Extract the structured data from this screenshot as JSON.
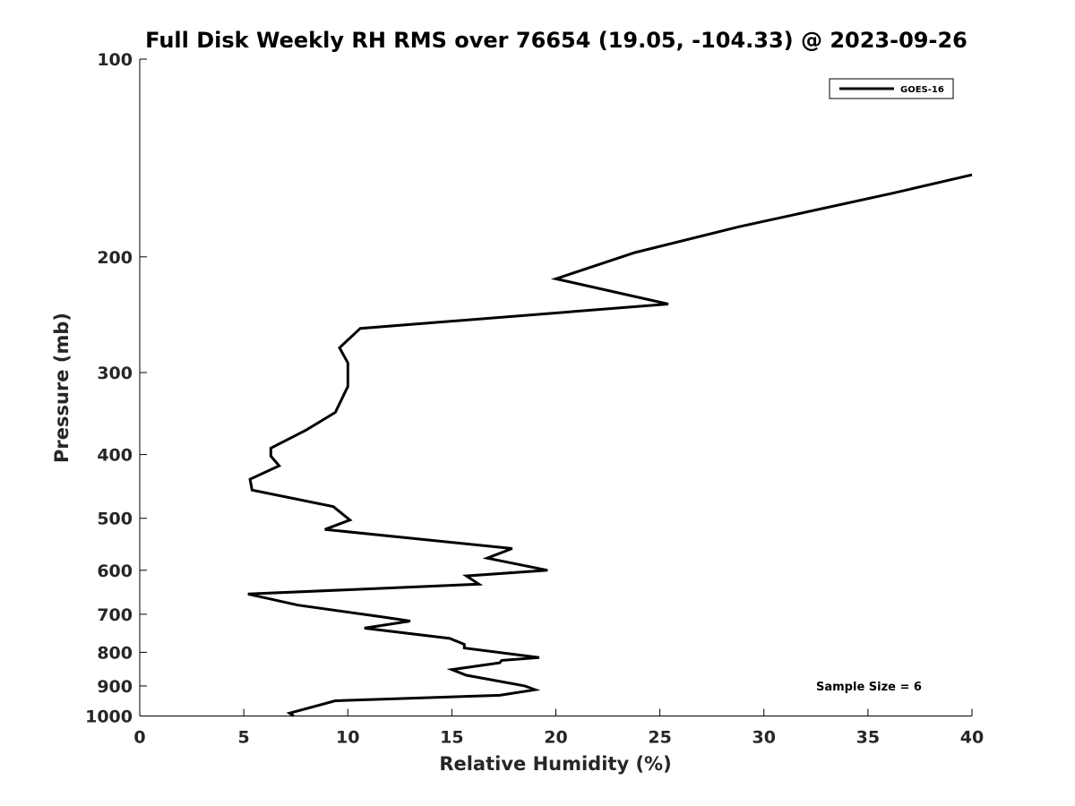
{
  "chart_data": {
    "type": "line",
    "title": "Full Disk Weekly RH RMS over 76654 (19.05, -104.33) @ 2023-09-26",
    "xlabel": "Relative Humidity (%)",
    "ylabel": "Pressure (mb)",
    "xlim": [
      0,
      40
    ],
    "ylim": [
      1000,
      100
    ],
    "yscale": "log",
    "xticks": [
      0,
      5,
      10,
      15,
      20,
      25,
      30,
      35,
      40
    ],
    "xtick_labels": [
      "0",
      "5",
      "10",
      "15",
      "20",
      "25",
      "30",
      "35",
      "40"
    ],
    "yticks": [
      100,
      200,
      300,
      400,
      500,
      600,
      700,
      800,
      900,
      1000
    ],
    "ytick_labels": [
      "100",
      "200",
      "300",
      "400",
      "500",
      "600",
      "700",
      "800",
      "900",
      "1000"
    ],
    "grid": false,
    "legend": {
      "position": "top-right",
      "entries": [
        "GOES-16"
      ]
    },
    "annotation": "Sample Size = 6",
    "series": [
      {
        "name": "GOES-16",
        "color": "#000000",
        "x": [
          40.0,
          36.2,
          28.8,
          23.8,
          20.0,
          25.4,
          10.6,
          9.6,
          10.0,
          10.0,
          9.4,
          8.0,
          6.3,
          6.3,
          6.7,
          5.3,
          5.4,
          9.3,
          10.1,
          8.9,
          17.9,
          16.7,
          19.6,
          15.7,
          16.3,
          5.2,
          7.6,
          11.7,
          13.0,
          10.8,
          14.9,
          15.6,
          15.6,
          19.2,
          17.4,
          17.3,
          15.0,
          15.7,
          18.5,
          19.0,
          17.3,
          9.4,
          7.2,
          7.4
        ],
        "y": [
          150,
          160,
          180,
          197,
          216,
          236,
          257,
          275,
          290,
          315,
          345,
          367,
          391,
          402,
          416,
          436,
          453,
          480,
          503,
          520,
          556,
          575,
          600,
          612,
          630,
          652,
          678,
          707,
          717,
          735,
          762,
          778,
          788,
          815,
          823,
          830,
          850,
          867,
          900,
          912,
          930,
          948,
          990,
          1000
        ]
      }
    ]
  }
}
